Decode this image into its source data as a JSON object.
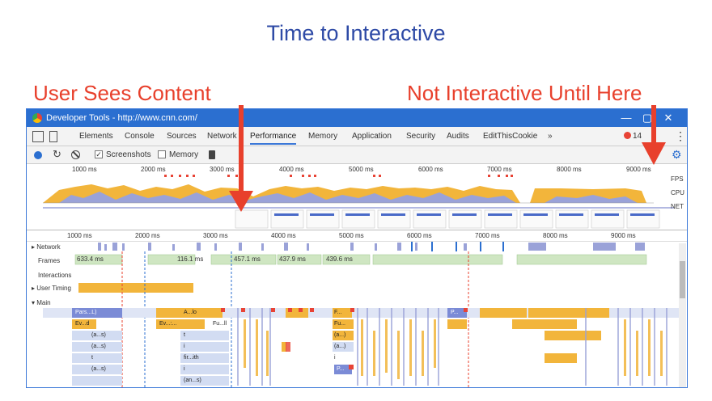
{
  "slide": {
    "title": "Time to Interactive",
    "callout_left": "User Sees Content",
    "callout_right": "Not Interactive Until Here",
    "arrow_color": "#e8402c",
    "title_color": "#2e4aa6"
  },
  "window": {
    "title": "Developer Tools - http://www.cnn.com/",
    "controls": [
      "—",
      "▢",
      "✕"
    ]
  },
  "tabs": [
    "Elements",
    "Console",
    "Sources",
    "Network",
    "Performance",
    "Memory",
    "Application",
    "Security",
    "Audits",
    "EditThisCookie",
    "»"
  ],
  "active_tab": "Performance",
  "error_count": "14",
  "toolbar": {
    "screenshots_label": "Screenshots",
    "screenshots_checked": true,
    "memory_label": "Memory",
    "memory_checked": false
  },
  "overview": {
    "ticks": [
      "1000 ms",
      "2000 ms",
      "3000 ms",
      "4000 ms",
      "5000 ms",
      "6000 ms",
      "7000 ms",
      "8000 ms",
      "9000 ms"
    ],
    "rows": [
      "FPS",
      "CPU",
      "NET"
    ]
  },
  "timeline": {
    "ticks": [
      "1000 ms",
      "2000 ms",
      "3000 ms",
      "4000 ms",
      "5000 ms",
      "6000 ms",
      "7000 ms",
      "8000 ms",
      "9000 ms"
    ],
    "tracks": [
      "▸ Network",
      "Frames",
      "Interactions",
      "▸ User Timing",
      "▾ Main"
    ],
    "frames": [
      "633.4 ms",
      "116.1 ms",
      "457.1 ms",
      "437.9 ms",
      "439.6 ms"
    ],
    "flame_labels": [
      "Pars...L)",
      "Ev...d",
      "Ev...:...",
      "(a...s)",
      "(a...s)",
      "t",
      "(a...s)",
      "A...lo",
      "Fu...ll",
      "t",
      "i",
      "fir...ith",
      "i",
      "(an...s)",
      "F...",
      "Fu...",
      "(a...)",
      "(a...)",
      "i",
      "P...",
      "P..."
    ]
  },
  "colors": {
    "scripting": "#f2b53b",
    "rendering": "#9aa2d8",
    "idle": "#d2dcf2",
    "main_bar": "#7b8bd6",
    "window_blue": "#2b6fd0"
  }
}
